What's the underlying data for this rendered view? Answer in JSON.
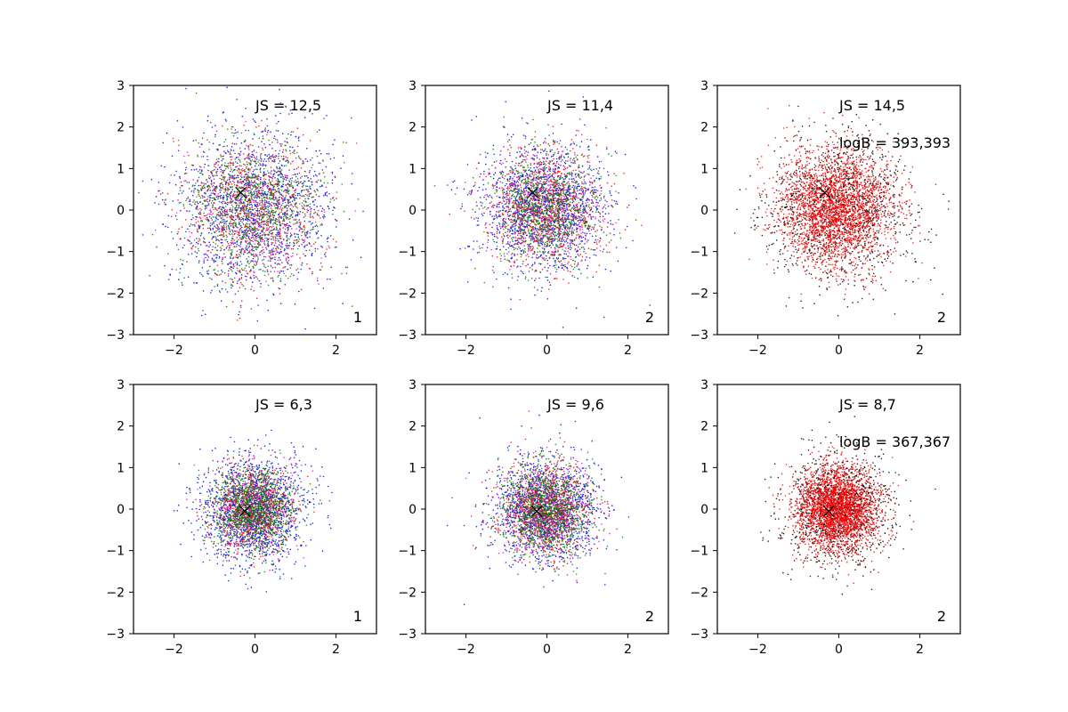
{
  "chart_data": [
    {
      "type": "scatter",
      "panel": [
        1,
        1
      ],
      "xlim": [
        -3,
        3
      ],
      "ylim": [
        -3,
        3
      ],
      "xticks": [
        -2,
        0,
        2
      ],
      "yticks": [
        -3,
        -2,
        -1,
        0,
        1,
        2,
        3
      ],
      "xtick_labels": [
        "−2",
        "0",
        "2"
      ],
      "ytick_labels": [
        "−3",
        "−2",
        "−1",
        "0",
        "1",
        "2",
        "3"
      ],
      "grid": false,
      "annotations": [
        "JS = 12,5"
      ],
      "corner_label": "1",
      "marker": {
        "symbol": "x",
        "x": -0.35,
        "y": 0.42,
        "color": "#000000"
      },
      "point_series": [
        {
          "color": "#0000ff",
          "spread": 1.0,
          "count": 1300
        },
        {
          "color": "#ff0000",
          "spread": 0.85,
          "count": 900
        },
        {
          "color": "#008000",
          "spread": 0.8,
          "count": 1100
        },
        {
          "color": "#ff00ff",
          "spread": 0.8,
          "count": 250
        }
      ]
    },
    {
      "type": "scatter",
      "panel": [
        1,
        2
      ],
      "xlim": [
        -3,
        3
      ],
      "ylim": [
        -3,
        3
      ],
      "xticks": [
        -2,
        0,
        2
      ],
      "yticks": [
        -3,
        -2,
        -1,
        0,
        1,
        2,
        3
      ],
      "xtick_labels": [
        "−2",
        "0",
        "2"
      ],
      "ytick_labels": [
        "−3",
        "−2",
        "−1",
        "0",
        "1",
        "2",
        "3"
      ],
      "grid": false,
      "annotations": [
        "JS = 11,4"
      ],
      "corner_label": "2",
      "marker": {
        "symbol": "x",
        "x": -0.35,
        "y": 0.42,
        "color": "#000000"
      },
      "point_series": [
        {
          "color": "#0000ff",
          "spread": 0.8,
          "count": 1300
        },
        {
          "color": "#ff0000",
          "spread": 0.7,
          "count": 1000
        },
        {
          "color": "#008000",
          "spread": 0.7,
          "count": 1100
        },
        {
          "color": "#ff00ff",
          "spread": 0.65,
          "count": 300
        }
      ]
    },
    {
      "type": "scatter",
      "panel": [
        1,
        3
      ],
      "xlim": [
        -3,
        3
      ],
      "ylim": [
        -3,
        3
      ],
      "xticks": [
        -2,
        0,
        2
      ],
      "yticks": [
        -3,
        -2,
        -1,
        0,
        1,
        2,
        3
      ],
      "xtick_labels": [
        "−2",
        "0",
        "2"
      ],
      "ytick_labels": [
        "−3",
        "−2",
        "−1",
        "0",
        "1",
        "2",
        "3"
      ],
      "grid": false,
      "annotations": [
        "JS = 14,5",
        "logB = 393,393"
      ],
      "corner_label": "2",
      "marker": {
        "symbol": "x",
        "x": -0.35,
        "y": 0.42,
        "color": "#000000"
      },
      "point_series": [
        {
          "color": "#000000",
          "spread": 0.85,
          "count": 1300
        },
        {
          "color": "#ff0000",
          "spread": 0.7,
          "count": 2600
        }
      ]
    },
    {
      "type": "scatter",
      "panel": [
        2,
        1
      ],
      "xlim": [
        -3,
        3
      ],
      "ylim": [
        -3,
        3
      ],
      "xticks": [
        -2,
        0,
        2
      ],
      "yticks": [
        -3,
        -2,
        -1,
        0,
        1,
        2,
        3
      ],
      "xtick_labels": [
        "−2",
        "0",
        "2"
      ],
      "ytick_labels": [
        "−3",
        "−2",
        "−1",
        "0",
        "1",
        "2",
        "3"
      ],
      "grid": false,
      "annotations": [
        "JS = 6,3"
      ],
      "corner_label": "1",
      "marker": {
        "symbol": "x",
        "x": -0.25,
        "y": -0.05,
        "color": "#000000"
      },
      "point_series": [
        {
          "color": "#0000ff",
          "spread": 0.65,
          "count": 1400
        },
        {
          "color": "#ff0000",
          "spread": 0.5,
          "count": 800
        },
        {
          "color": "#008000",
          "spread": 0.5,
          "count": 1300
        },
        {
          "color": "#ff00ff",
          "spread": 0.55,
          "count": 250
        }
      ]
    },
    {
      "type": "scatter",
      "panel": [
        2,
        2
      ],
      "xlim": [
        -3,
        3
      ],
      "ylim": [
        -3,
        3
      ],
      "xticks": [
        -2,
        0,
        2
      ],
      "yticks": [
        -3,
        -2,
        -1,
        0,
        1,
        2,
        3
      ],
      "xtick_labels": [
        "−2",
        "0",
        "2"
      ],
      "ytick_labels": [
        "−3",
        "−2",
        "−1",
        "0",
        "1",
        "2",
        "3"
      ],
      "grid": false,
      "annotations": [
        "JS = 9,6"
      ],
      "corner_label": "2",
      "marker": {
        "symbol": "x",
        "x": -0.25,
        "y": -0.05,
        "color": "#000000"
      },
      "point_series": [
        {
          "color": "#0000ff",
          "spread": 0.65,
          "count": 1300
        },
        {
          "color": "#ff0000",
          "spread": 0.55,
          "count": 1000
        },
        {
          "color": "#008000",
          "spread": 0.55,
          "count": 1300
        },
        {
          "color": "#ff00ff",
          "spread": 0.55,
          "count": 300
        }
      ]
    },
    {
      "type": "scatter",
      "panel": [
        2,
        3
      ],
      "xlim": [
        -3,
        3
      ],
      "ylim": [
        -3,
        3
      ],
      "xticks": [
        -2,
        0,
        2
      ],
      "yticks": [
        -3,
        -2,
        -1,
        0,
        1,
        2,
        3
      ],
      "xtick_labels": [
        "−2",
        "0",
        "2"
      ],
      "ytick_labels": [
        "−3",
        "−2",
        "−1",
        "0",
        "1",
        "2",
        "3"
      ],
      "grid": false,
      "annotations": [
        "JS = 8,7",
        "logB = 367,367"
      ],
      "corner_label": "2",
      "marker": {
        "symbol": "x",
        "x": -0.25,
        "y": -0.05,
        "color": "#000000"
      },
      "point_series": [
        {
          "color": "#000000",
          "spread": 0.65,
          "count": 1300
        },
        {
          "color": "#ff0000",
          "spread": 0.5,
          "count": 2600
        }
      ]
    }
  ]
}
